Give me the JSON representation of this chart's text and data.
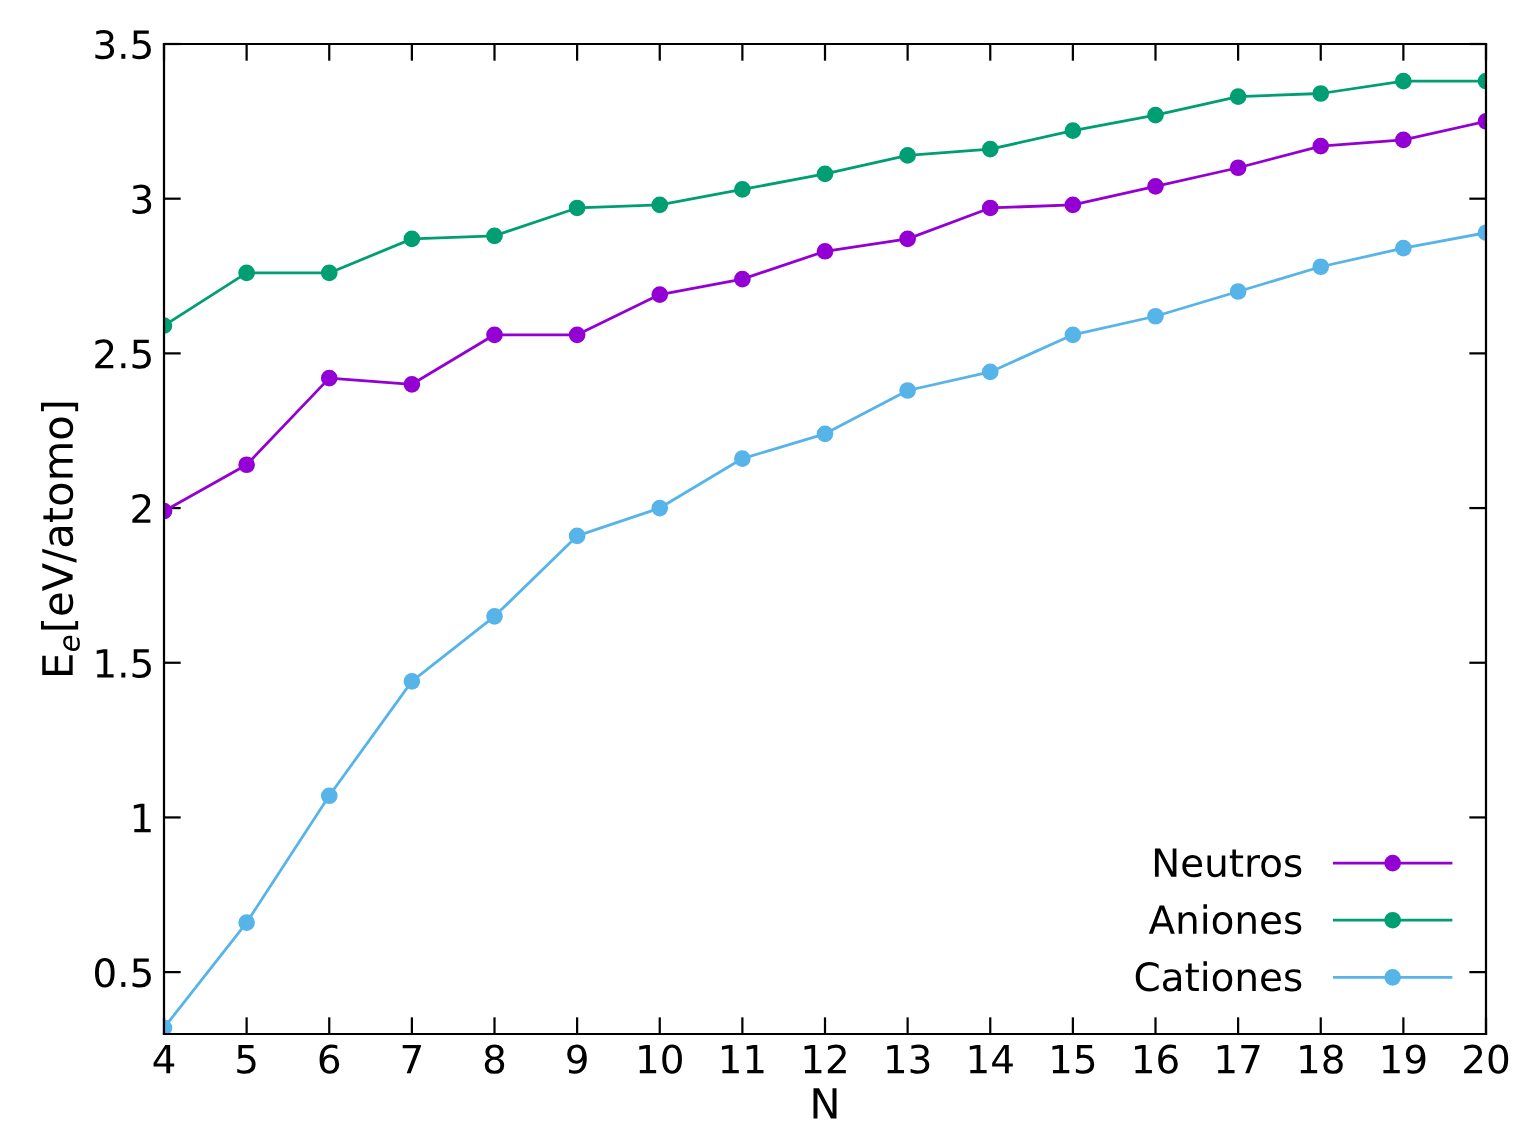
{
  "chart_data": {
    "type": "line",
    "xlabel": "N",
    "ylabel": "E$_{e}$[eV/atomo]",
    "x": [
      4,
      5,
      6,
      7,
      8,
      9,
      10,
      11,
      12,
      13,
      14,
      15,
      16,
      17,
      18,
      19,
      20
    ],
    "series": [
      {
        "name": "Neutros",
        "color": "#9400d3",
        "values": [
          1.99,
          2.14,
          2.42,
          2.4,
          2.56,
          2.56,
          2.69,
          2.74,
          2.83,
          2.87,
          2.97,
          2.98,
          3.04,
          3.1,
          3.17,
          3.19,
          3.25
        ]
      },
      {
        "name": "Aniones",
        "color": "#009e73",
        "values": [
          2.59,
          2.76,
          2.76,
          2.87,
          2.88,
          2.97,
          2.98,
          3.03,
          3.08,
          3.14,
          3.16,
          3.22,
          3.27,
          3.33,
          3.34,
          3.38,
          3.38
        ]
      },
      {
        "name": "Cationes",
        "color": "#56b4e9",
        "values": [
          0.32,
          0.66,
          1.07,
          1.44,
          1.65,
          1.91,
          2.0,
          2.16,
          2.24,
          2.38,
          2.44,
          2.56,
          2.62,
          2.7,
          2.78,
          2.84,
          2.89
        ]
      }
    ],
    "xlim": [
      4,
      20
    ],
    "xticks": [
      4,
      5,
      6,
      7,
      8,
      9,
      10,
      11,
      12,
      13,
      14,
      15,
      16,
      17,
      18,
      19,
      20
    ],
    "ylim": [
      0.3,
      3.5
    ],
    "yticks": [
      0.5,
      1,
      1.5,
      2,
      2.5,
      3,
      3.5
    ],
    "marker": "circle",
    "line_style": "solid",
    "legend": "bottom right",
    "grid": false
  }
}
